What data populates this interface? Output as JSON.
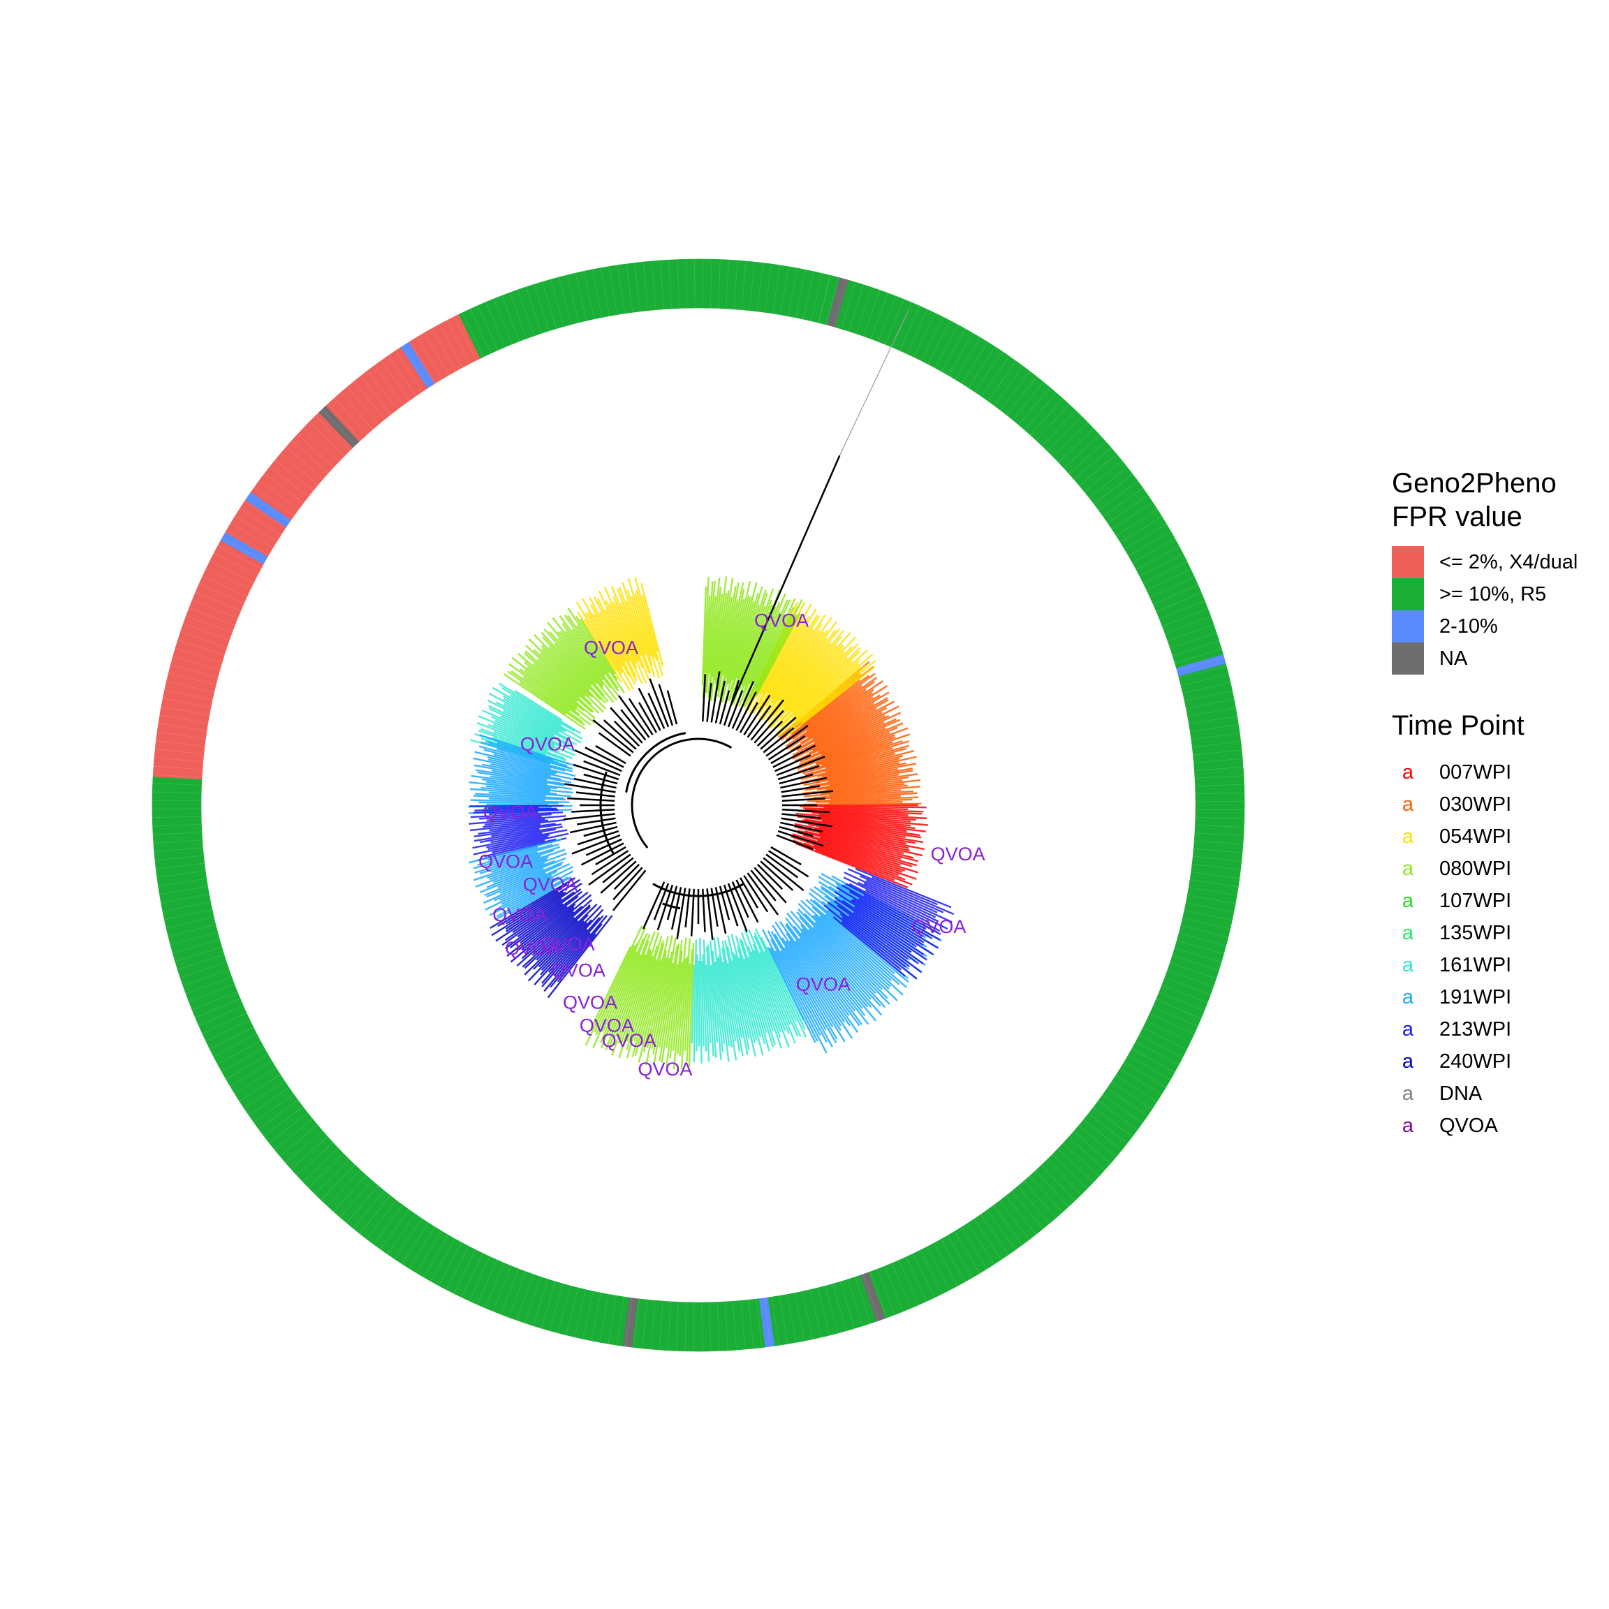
{
  "fpr_legend": {
    "title": "Geno2Pheno\nFPR value",
    "items": [
      {
        "label": "<= 2%, X4/dual",
        "color": "#F0605A"
      },
      {
        "label": ">= 10%, R5",
        "color": "#1BAE37"
      },
      {
        "label": "2-10%",
        "color": "#5A8CFF"
      },
      {
        "label": "NA",
        "color": "#6E6E6E"
      }
    ]
  },
  "time_legend": {
    "title": "Time Point",
    "key_glyph": "a",
    "items": [
      {
        "label": "007WPI",
        "color": "#FF0000"
      },
      {
        "label": "030WPI",
        "color": "#FF5A00"
      },
      {
        "label": "054WPI",
        "color": "#FFE000"
      },
      {
        "label": "080WPI",
        "color": "#8EE81A"
      },
      {
        "label": "107WPI",
        "color": "#22D922"
      },
      {
        "label": "135WPI",
        "color": "#22E86A"
      },
      {
        "label": "161WPI",
        "color": "#30E8D0"
      },
      {
        "label": "191WPI",
        "color": "#1AA8FF"
      },
      {
        "label": "213WPI",
        "color": "#1A1AF0"
      },
      {
        "label": "240WPI",
        "color": "#0000C8"
      },
      {
        "label": "DNA",
        "color": "#808080"
      },
      {
        "label": "QVOA",
        "color": "#8000A0"
      }
    ]
  },
  "qvoa_label": "QVOA",
  "qvoa_color": "#8A1FD9",
  "ring_segments": [
    {
      "category": ">= 10%, R5",
      "start_deg": 284,
      "end_deg": 285
    },
    {
      "category": "NA",
      "start_deg": 285,
      "end_deg": 286
    },
    {
      "category": ">= 10%, R5",
      "start_deg": 286,
      "end_deg": 344
    },
    {
      "category": "2-10%",
      "start_deg": 344,
      "end_deg": 345
    },
    {
      "category": ">= 10%, R5",
      "start_deg": 345,
      "end_deg": 430
    },
    {
      "category": "NA",
      "start_deg": 430,
      "end_deg": 431
    },
    {
      "category": ">= 10%, R5",
      "start_deg": 431,
      "end_deg": 442
    },
    {
      "category": "2-10%",
      "start_deg": 442,
      "end_deg": 443
    },
    {
      "category": ">= 10%, R5",
      "start_deg": 443,
      "end_deg": 457
    },
    {
      "category": "NA",
      "start_deg": 457,
      "end_deg": 458
    },
    {
      "category": ">= 10%, R5",
      "start_deg": 458,
      "end_deg": 543
    },
    {
      "category": "<= 2%, X4/dual",
      "start_deg": 543,
      "end_deg": 569
    },
    {
      "category": "2-10%",
      "start_deg": 569,
      "end_deg": 570
    },
    {
      "category": "<= 2%, X4/dual",
      "start_deg": 570,
      "end_deg": 574
    },
    {
      "category": "2-10%",
      "start_deg": 574,
      "end_deg": 575
    },
    {
      "category": "<= 2%, X4/dual",
      "start_deg": 575,
      "end_deg": 586
    },
    {
      "category": "NA",
      "start_deg": 586,
      "end_deg": 587
    },
    {
      "category": "<= 2%, X4/dual",
      "start_deg": 587,
      "end_deg": 597
    },
    {
      "category": "2-10%",
      "start_deg": 597,
      "end_deg": 598
    },
    {
      "category": "<= 2%, X4/dual",
      "start_deg": 598,
      "end_deg": 604
    },
    {
      "category": ">= 10%, R5",
      "start_deg": 604,
      "end_deg": 640
    },
    {
      "category": ">= 10%, R5",
      "start_deg": 640,
      "end_deg": 644
    }
  ]
}
